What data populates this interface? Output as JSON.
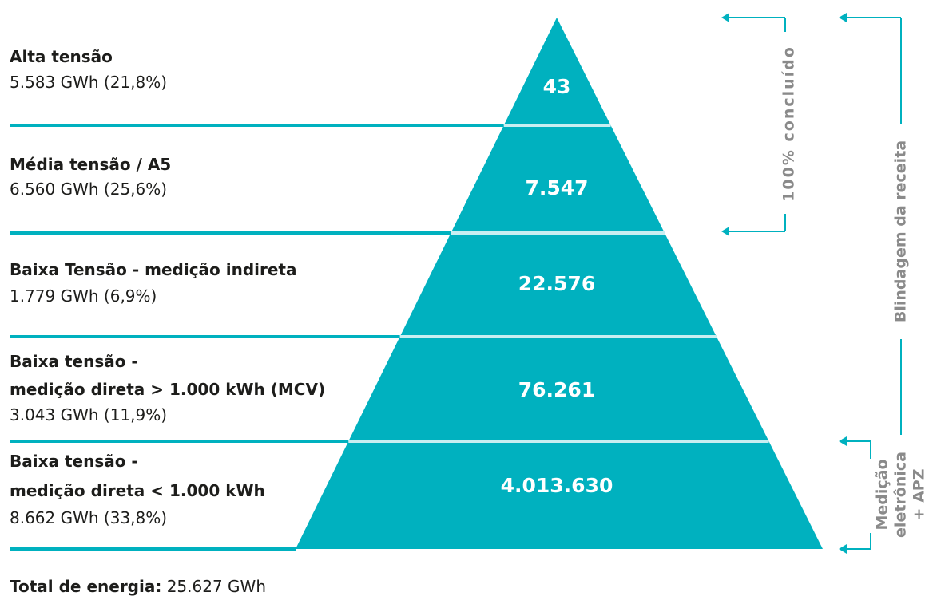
{
  "layers": [
    {
      "title": [
        "Alta tensão"
      ],
      "energy": "5.583 GWh (21,8%)",
      "count": "43"
    },
    {
      "title": [
        "Média tensão / A5"
      ],
      "energy": "6.560 GWh (25,6%)",
      "count": "7.547"
    },
    {
      "title": [
        "Baixa Tensão - medição indireta"
      ],
      "energy": "1.779 GWh (6,9%)",
      "count": "22.576"
    },
    {
      "title": [
        "Baixa tensão -",
        "medição direta > 1.000 kWh (MCV)"
      ],
      "energy": "3.043 GWh (11,9%)",
      "count": "76.261"
    },
    {
      "title": [
        "Baixa tensão -",
        "medição direta < 1.000 kWh"
      ],
      "energy": "8.662 GWh (33,8%)",
      "count": "4.013.630"
    }
  ],
  "brackets": {
    "concluded": "100% concluído",
    "shield": "Blindagem da receita",
    "metering": [
      "Medição",
      "eletrônica",
      "+ APZ"
    ]
  },
  "footer": {
    "label": "Total de energia:",
    "value": "25.627 GWh"
  }
}
